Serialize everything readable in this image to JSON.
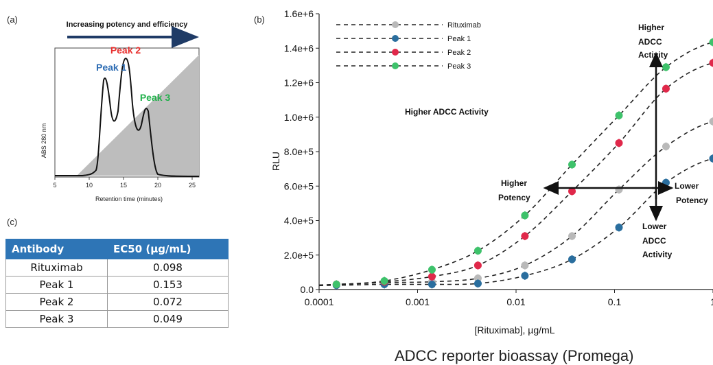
{
  "panels": {
    "a": "(a)",
    "b": "(b)",
    "c": "(c)"
  },
  "footer_title": "ADCC reporter bioassay (Promega)",
  "chart_data": [
    {
      "type": "line",
      "title": "Increasing potency and efficiency",
      "xlabel": "Retention time (minutes)",
      "ylabel": "ABS 280 nm",
      "xlim": [
        5,
        26
      ],
      "xticks": [
        "5",
        "10",
        "15",
        "20",
        "25"
      ],
      "peak_labels": [
        {
          "name": "Peak 1",
          "x": 12.5,
          "color": "#2e6db4"
        },
        {
          "name": "Peak 2",
          "x": 15.6,
          "color": "#e8312f"
        },
        {
          "name": "Peak 3",
          "x": 18.9,
          "color": "#22b14c"
        }
      ]
    },
    {
      "type": "scatter",
      "xlabel": "[Rituximab], µg/mL",
      "ylabel": "RLU",
      "x_scale": "log",
      "xlim": [
        0.0001,
        1
      ],
      "ylim": [
        0,
        1600000
      ],
      "xticks": [
        "0.0001",
        "0.001",
        "0.01",
        "0.1",
        "1"
      ],
      "yticks": [
        "0.0",
        "2.0e+5",
        "4.0e+5",
        "6.0e+5",
        "8.0e+5",
        "1.0e+6",
        "1.2e+6",
        "1.4e+6",
        "1.6e+6"
      ],
      "legend_position": "top-left",
      "x": [
        0.00015,
        0.00046,
        0.0014,
        0.0041,
        0.0123,
        0.037,
        0.111,
        0.333,
        1.0
      ],
      "series": [
        {
          "name": "Rituximab",
          "color": "#b9b9b9",
          "values": [
            30000,
            40000,
            45000,
            65000,
            140000,
            310000,
            580000,
            830000,
            975000
          ]
        },
        {
          "name": "Peak 1",
          "color": "#2a6e9e",
          "values": [
            25000,
            30000,
            30000,
            35000,
            80000,
            175000,
            360000,
            620000,
            760000
          ]
        },
        {
          "name": "Peak 2",
          "color": "#e0284a",
          "values": [
            30000,
            45000,
            75000,
            140000,
            310000,
            570000,
            850000,
            1165000,
            1315000
          ]
        },
        {
          "name": "Peak 3",
          "color": "#3ec26b",
          "values": [
            30000,
            50000,
            115000,
            225000,
            430000,
            725000,
            1010000,
            1290000,
            1435000
          ]
        }
      ],
      "annotations": {
        "center": "Higher ADCC Activity",
        "top_l1": "Higher",
        "top_l2": "ADCC",
        "top_l3": "Activity",
        "bottom_l1": "Lower",
        "bottom_l2": "ADCC",
        "bottom_l3": "Activity",
        "left_l1": "Higher",
        "left_l2": "Potency",
        "right_l1": "Lower",
        "right_l2": "Potency"
      }
    }
  ],
  "table": {
    "headers": [
      "Antibody",
      "EC50 (µg/mL)"
    ],
    "rows": [
      [
        "Rituximab",
        "0.098"
      ],
      [
        "Peak 1",
        "0.153"
      ],
      [
        "Peak 2",
        "0.072"
      ],
      [
        "Peak 3",
        "0.049"
      ]
    ]
  }
}
